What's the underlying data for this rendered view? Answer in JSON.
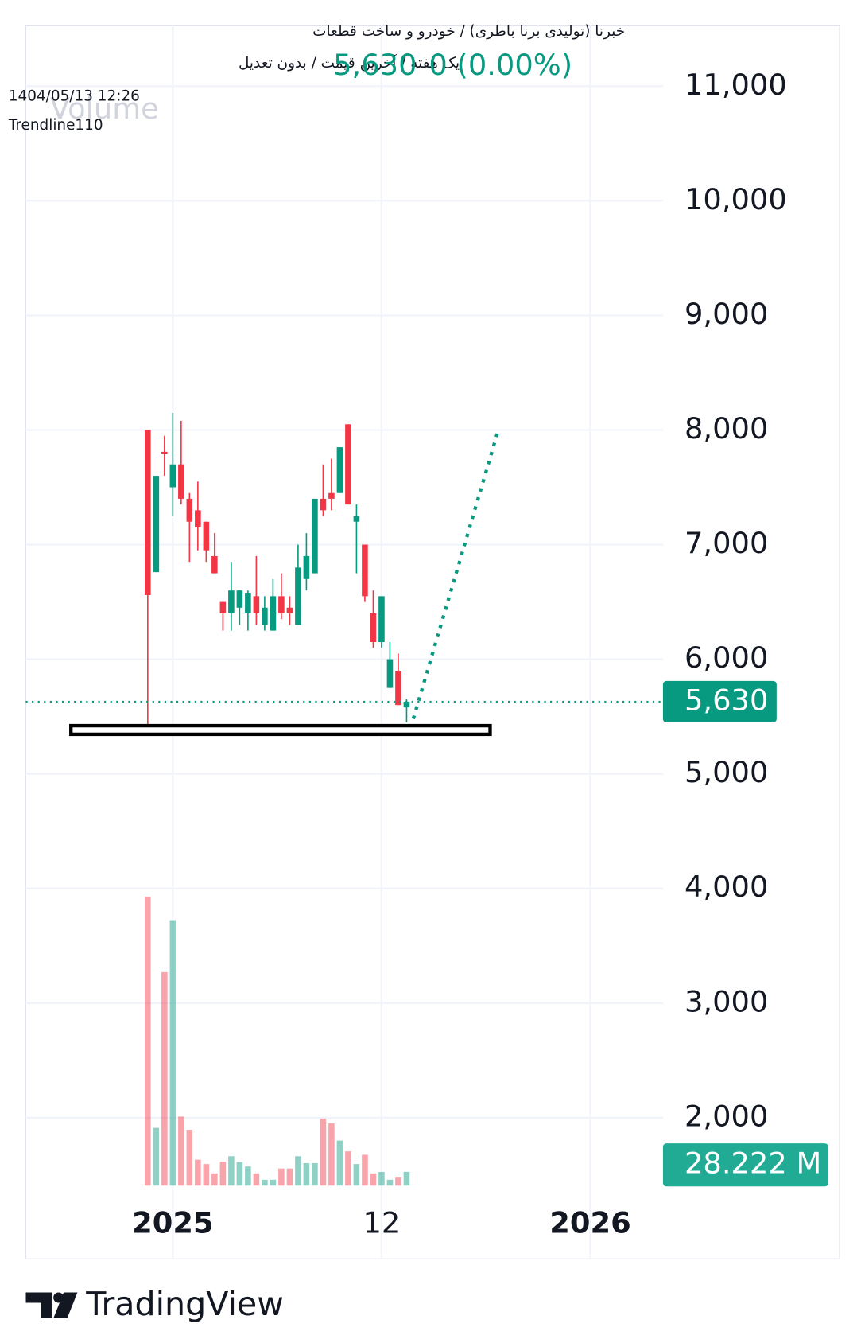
{
  "chart_data": {
    "type": "candlestick",
    "header": [
      "خبرنا (تولیدی برنا باطری) / خودرو و ساخت قطعات",
      "یک هفته / آخرین قیمت / بدون تعدیل",
      "1404/05/13 12:26",
      "Trendline110"
    ],
    "legend": "Volume",
    "change": "0 (0.00%)",
    "price_label": {
      "value": 5630,
      "label": "5,630"
    },
    "volume_label": {
      "value": 28.222,
      "label": "28.222 M"
    },
    "up_color": "#089981",
    "down_color": "#f23645",
    "x": [
      -3,
      -2,
      -1,
      0,
      1,
      2,
      3,
      4,
      5,
      6,
      7,
      8,
      9,
      10,
      11,
      12,
      13,
      14,
      15,
      16,
      17,
      18,
      19,
      20,
      21,
      22,
      23,
      24,
      25,
      26,
      27,
      28
    ],
    "open": [
      8000,
      6760,
      7810,
      7500,
      7700,
      7400,
      7300,
      7200,
      6900,
      6500,
      6400,
      6450,
      6400,
      6550,
      6300,
      6250,
      6550,
      6450,
      6300,
      6700,
      6750,
      7400,
      7450,
      7450,
      8050,
      7200,
      7000,
      6400,
      6150,
      5750,
      5900,
      5580
    ],
    "high": [
      8000,
      7600,
      7950,
      8150,
      8080,
      7450,
      7550,
      7200,
      7100,
      6500,
      6850,
      6600,
      6600,
      6900,
      6550,
      6700,
      6750,
      6550,
      7000,
      7100,
      7400,
      7700,
      7750,
      7850,
      8050,
      7350,
      7000,
      6600,
      6550,
      6150,
      6050,
      5650
    ],
    "low": [
      5340,
      6760,
      7600,
      7250,
      7350,
      6850,
      6950,
      6850,
      6750,
      6250,
      6250,
      6300,
      6250,
      6300,
      6250,
      6250,
      6350,
      6300,
      6300,
      6600,
      6750,
      7250,
      7300,
      7450,
      7350,
      6750,
      6500,
      6100,
      6100,
      5750,
      5600,
      5450
    ],
    "close": [
      6560,
      7600,
      7800,
      7700,
      7400,
      7200,
      7150,
      6950,
      6750,
      6400,
      6600,
      6600,
      6580,
      6400,
      6450,
      6550,
      6400,
      6400,
      6800,
      6900,
      7400,
      7300,
      7400,
      7850,
      7350,
      7250,
      6550,
      6150,
      6550,
      6000,
      5600,
      5630
    ],
    "volume": [
      590,
      118,
      436,
      542,
      141,
      114,
      53,
      44,
      25,
      49,
      60,
      48,
      39,
      25,
      12,
      12,
      35,
      35,
      60,
      46,
      46,
      137,
      127,
      92,
      70,
      44,
      63,
      25,
      28,
      12,
      18,
      28.222
    ],
    "volume_ylim": [
      0,
      760
    ],
    "ylim": [
      776,
      11526
    ],
    "yticks": [
      {
        "value": 2000,
        "label": "2,000"
      },
      {
        "value": 3000,
        "label": "3,000"
      },
      {
        "value": 4000,
        "label": "4,000"
      },
      {
        "value": 5000,
        "label": "5,000"
      },
      {
        "value": 6000,
        "label": "6,000"
      },
      {
        "value": 7000,
        "label": "7,000"
      },
      {
        "value": 8000,
        "label": "8,000"
      },
      {
        "value": 9000,
        "label": "9,000"
      },
      {
        "value": 10000,
        "label": "10,000"
      },
      {
        "value": 11000,
        "label": "11,000"
      }
    ],
    "xlim": [
      -17.6,
      58.7
    ],
    "xticks": [
      {
        "value": 0,
        "label": "2025"
      },
      {
        "value": 25,
        "label": "12"
      },
      {
        "value": 50,
        "label": "2026"
      }
    ],
    "grid": true,
    "support": {
      "x": [
        -12.2,
        38
      ],
      "value": 5383
    },
    "trendline": {
      "x": [
        28.8,
        38.9
      ],
      "values": [
        5480,
        7980
      ]
    },
    "watermark": "TradingView"
  }
}
